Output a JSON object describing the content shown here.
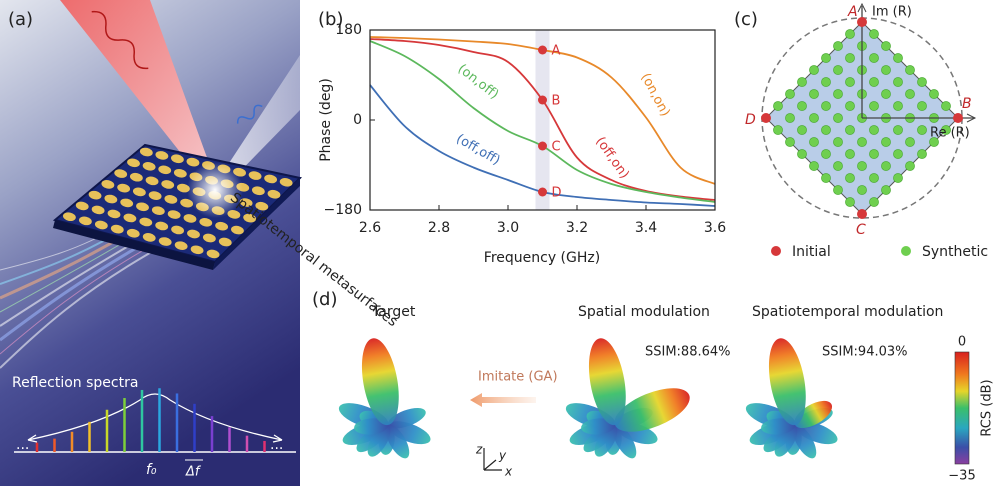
{
  "panel_a": {
    "label": "(a)",
    "surface_label": "Spatiotemporal metasurfaces",
    "spectra_label": "Reflection spectra",
    "f0": "f₀",
    "df": "Δf",
    "dots_left": "···",
    "dots_right": "···"
  },
  "chart_data": {
    "type": "line",
    "panel_label": "(b)",
    "xlabel": "Frequency (GHz)",
    "ylabel": "Phase (deg)",
    "x": [
      2.6,
      2.7,
      2.8,
      2.9,
      3.0,
      3.1,
      3.2,
      3.3,
      3.4,
      3.5,
      3.6
    ],
    "series": [
      {
        "name": "(on,on)",
        "color": "#e8892a",
        "values": [
          166,
          164,
          161,
          157,
          152,
          140,
          125,
          85,
          5,
          -95,
          -128
        ]
      },
      {
        "name": "(off,on)",
        "color": "#d6383a",
        "values": [
          162,
          158,
          150,
          136,
          116,
          40,
          -75,
          -120,
          -142,
          -153,
          -160
        ]
      },
      {
        "name": "(on,off)",
        "color": "#5cb85c",
        "values": [
          158,
          128,
          82,
          24,
          -22,
          -52,
          -100,
          -128,
          -144,
          -155,
          -164
        ]
      },
      {
        "name": "(off,off)",
        "color": "#3f6fb5",
        "values": [
          70,
          -12,
          -62,
          -95,
          -120,
          -144,
          -154,
          -160,
          -165,
          -168,
          -172
        ]
      }
    ],
    "markers": [
      {
        "label": "A",
        "x": 3.1,
        "y": 140
      },
      {
        "label": "B",
        "x": 3.1,
        "y": 40
      },
      {
        "label": "C",
        "x": 3.1,
        "y": -52
      },
      {
        "label": "D",
        "x": 3.1,
        "y": -144
      }
    ],
    "marker_color": "#d6383a",
    "xlim": [
      2.6,
      3.6
    ],
    "xticks": [
      2.6,
      2.8,
      {
        "value": 3,
        "label": "3.0"
      },
      3.2,
      3.4,
      3.6
    ],
    "ylim": [
      -180,
      180
    ],
    "yticks": [
      {
        "value": -180,
        "label": "−180"
      },
      0,
      180
    ]
  },
  "panel_c": {
    "label": "(c)",
    "im_axis": "Im (R)",
    "re_axis": "Re (R)",
    "points": [
      "A",
      "B",
      "C",
      "D"
    ],
    "legend": [
      "Initial",
      "Synthetic"
    ]
  },
  "panel_d": {
    "label": "(d)",
    "titles": [
      "Target",
      "Spatial modulation",
      "Spatiotemporal modulation"
    ],
    "ssim": [
      "SSIM:88.64%",
      "SSIM:94.03%"
    ],
    "arrow_label": "Imitate (GA)",
    "axes": [
      "z",
      "y",
      "x"
    ],
    "colorbar": {
      "label": "RCS (dB)",
      "top": "0",
      "bottom": "−35"
    }
  }
}
